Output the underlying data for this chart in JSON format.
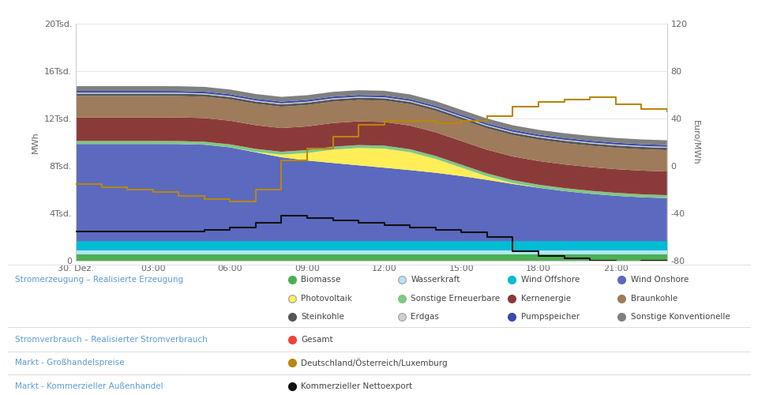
{
  "ylabel_left": "MWh",
  "ylabel_right": "Euro/MWh",
  "ylim_left": [
    0,
    20000
  ],
  "ylim_right": [
    -80,
    120
  ],
  "yticks_left": [
    0,
    4000,
    8000,
    12000,
    16000,
    20000
  ],
  "ytick_labels_left": [
    "0",
    "4Tsd.",
    "8Tsd.",
    "12Tsd.",
    "16Tsd.",
    "20Tsd."
  ],
  "yticks_right": [
    -80,
    -40,
    0,
    40,
    80,
    120
  ],
  "xtick_positions": [
    0,
    3,
    6,
    9,
    12,
    15,
    18,
    21
  ],
  "xtick_labels": [
    "30. Dez.",
    "03:00",
    "06:00",
    "09:00",
    "12:00",
    "15:00",
    "18:00",
    "21:00"
  ],
  "hours": [
    0,
    1,
    2,
    3,
    4,
    5,
    6,
    7,
    8,
    9,
    10,
    11,
    12,
    13,
    14,
    15,
    16,
    17,
    18,
    19,
    20,
    21,
    22,
    23
  ],
  "biomasse": [
    550,
    550,
    550,
    550,
    550,
    550,
    550,
    550,
    550,
    550,
    550,
    550,
    550,
    550,
    550,
    550,
    550,
    550,
    550,
    550,
    550,
    550,
    550,
    550
  ],
  "wasserkraft": [
    300,
    300,
    300,
    300,
    300,
    300,
    300,
    300,
    300,
    300,
    300,
    300,
    300,
    300,
    300,
    300,
    300,
    300,
    300,
    300,
    300,
    300,
    300,
    300
  ],
  "wind_offshore": [
    800,
    800,
    800,
    800,
    800,
    800,
    800,
    800,
    800,
    800,
    800,
    800,
    800,
    800,
    800,
    800,
    800,
    800,
    800,
    800,
    800,
    800,
    800,
    800
  ],
  "wind_onshore": [
    8200,
    8200,
    8200,
    8200,
    8200,
    8200,
    8000,
    7500,
    7000,
    6800,
    6600,
    6400,
    6200,
    6000,
    5800,
    5500,
    5200,
    4800,
    4500,
    4200,
    4000,
    3800,
    3700,
    3600
  ],
  "photovoltaik": [
    0,
    0,
    0,
    0,
    0,
    0,
    0,
    0,
    100,
    600,
    1200,
    1500,
    1700,
    1600,
    1200,
    700,
    200,
    20,
    0,
    0,
    0,
    0,
    0,
    0
  ],
  "sonstige_erneu": [
    250,
    250,
    250,
    250,
    250,
    250,
    250,
    250,
    250,
    250,
    250,
    250,
    250,
    250,
    250,
    250,
    250,
    250,
    250,
    250,
    250,
    250,
    250,
    250
  ],
  "kernenergie": [
    2000,
    2000,
    2000,
    2000,
    2000,
    2000,
    2000,
    2000,
    2000,
    2000,
    2000,
    2000,
    2000,
    2000,
    2000,
    2000,
    2000,
    2000,
    2000,
    2000,
    2000,
    2000,
    2000,
    2000
  ],
  "braunkohle": [
    1800,
    1800,
    1800,
    1800,
    1800,
    1800,
    1800,
    1800,
    1800,
    1800,
    1800,
    1800,
    1800,
    1800,
    1800,
    1800,
    1800,
    1800,
    1800,
    1800,
    1800,
    1800,
    1800,
    1800
  ],
  "steinkohle": [
    200,
    200,
    200,
    200,
    200,
    200,
    200,
    200,
    200,
    200,
    200,
    200,
    200,
    200,
    200,
    200,
    200,
    200,
    200,
    200,
    200,
    200,
    200,
    200
  ],
  "erdgas": [
    80,
    80,
    80,
    80,
    80,
    80,
    80,
    80,
    80,
    80,
    80,
    80,
    80,
    80,
    80,
    80,
    80,
    80,
    80,
    80,
    80,
    80,
    80,
    80
  ],
  "pumpspeicher": [
    150,
    150,
    150,
    150,
    150,
    150,
    150,
    150,
    150,
    150,
    150,
    150,
    150,
    150,
    150,
    150,
    150,
    150,
    150,
    150,
    150,
    150,
    150,
    150
  ],
  "sonstige_konv": [
    400,
    400,
    400,
    400,
    400,
    400,
    400,
    400,
    400,
    400,
    400,
    400,
    400,
    400,
    400,
    400,
    400,
    400,
    400,
    400,
    400,
    400,
    400,
    400
  ],
  "colors": {
    "biomasse": "#4caf50",
    "wasserkraft": "#b3e5fc",
    "wind_offshore": "#00bcd4",
    "wind_onshore": "#5b6abf",
    "photovoltaik": "#ffee58",
    "sonstige_erneu": "#81c784",
    "kernenergie": "#8b3a3a",
    "braunkohle": "#9e7b5a",
    "steinkohle": "#555555",
    "erdgas": "#d0d0d0",
    "pumpspeicher": "#3a4aab",
    "sonstige_konv": "#808080"
  },
  "price_euro": [
    -15,
    -18,
    -20,
    -22,
    -25,
    -28,
    -30,
    -20,
    5,
    15,
    25,
    35,
    38,
    38,
    36,
    38,
    42,
    50,
    54,
    56,
    58,
    52,
    48,
    46
  ],
  "netexport_euro": [
    -55,
    -55,
    -55,
    -55,
    -55,
    -54,
    -52,
    -48,
    -42,
    -44,
    -46,
    -48,
    -50,
    -52,
    -54,
    -56,
    -60,
    -72,
    -76,
    -78,
    -80,
    -82,
    -80,
    -80
  ],
  "section_labels": [
    "Stromerzeugung – Realisierte Erzeugung",
    "Stromverbrauch – Realisierter Stromverbrauch",
    "Markt - Großhandelspreise",
    "Markt - Kommerzieller Außenhandel"
  ],
  "legend_row1": [
    [
      "Biomasse",
      "#4caf50"
    ],
    [
      "Wasserkraft",
      "#b3e5fc"
    ],
    [
      "Wind Offshore",
      "#00bcd4"
    ],
    [
      "Wind Onshore",
      "#5b6abf"
    ]
  ],
  "legend_row2": [
    [
      "Photovoltaik",
      "#ffee58"
    ],
    [
      "Sonstige Erneuerbare",
      "#81c784"
    ],
    [
      "Kernenergie",
      "#8b3a3a"
    ],
    [
      "Braunkohle",
      "#9e7b5a"
    ]
  ],
  "legend_row3": [
    [
      "Steinkohle",
      "#555555"
    ],
    [
      "Erdgas",
      "#d0d0d0"
    ],
    [
      "Pumpspeicher",
      "#3a4aab"
    ],
    [
      "Sonstige Konventionelle",
      "#808080"
    ]
  ],
  "gesamt_color": "#f44336",
  "price_color": "#b8860b",
  "netexport_color": "#111111",
  "section_text_color": "#5b9bd5",
  "label_text_color": "#444444",
  "grid_color": "#dddddd",
  "axis_color": "#cccccc",
  "tick_color": "#666666"
}
